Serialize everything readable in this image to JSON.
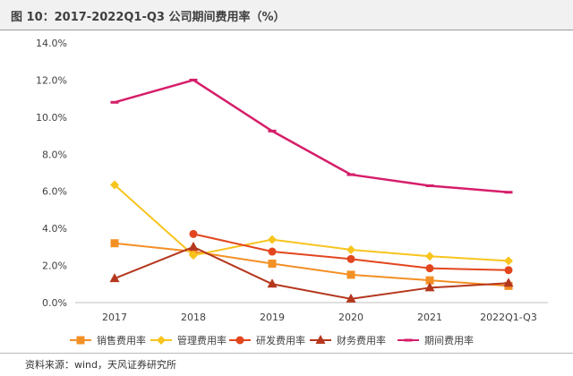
{
  "header": {
    "title": "图 10：2017-2022Q1-Q3 公司期间费用率（%）"
  },
  "footer": {
    "source": "资料来源：wind，天风证券研究所"
  },
  "chart_data": {
    "type": "line",
    "title": "",
    "xlabel": "",
    "ylabel": "",
    "categories": [
      "2017",
      "2018",
      "2019",
      "2020",
      "2021",
      "2022Q1-Q3"
    ],
    "y_ticks": [
      "0.0%",
      "2.0%",
      "4.0%",
      "6.0%",
      "8.0%",
      "10.0%",
      "12.0%",
      "14.0%"
    ],
    "ylim": [
      0,
      14
    ],
    "grid": false,
    "legend_position": "bottom",
    "series": [
      {
        "name": "销售费用率",
        "color": "#f39025",
        "marker": "square",
        "values": [
          3.2,
          2.75,
          2.1,
          1.5,
          1.2,
          0.9
        ]
      },
      {
        "name": "管理费用率",
        "color": "#f8c41d",
        "marker": "diamond",
        "values": [
          6.35,
          2.55,
          3.4,
          2.85,
          2.5,
          2.25
        ]
      },
      {
        "name": "研发费用率",
        "color": "#e2461e",
        "marker": "circle",
        "values": [
          null,
          3.7,
          2.75,
          2.35,
          1.85,
          1.75
        ]
      },
      {
        "name": "财务费用率",
        "color": "#b5371e",
        "marker": "triangle",
        "values": [
          1.3,
          3.0,
          1.0,
          0.2,
          0.8,
          1.05
        ]
      },
      {
        "name": "期间费用率",
        "color": "#d61e6a",
        "marker": "dash",
        "values": [
          10.8,
          12.0,
          9.25,
          6.9,
          6.3,
          5.95
        ]
      }
    ]
  }
}
